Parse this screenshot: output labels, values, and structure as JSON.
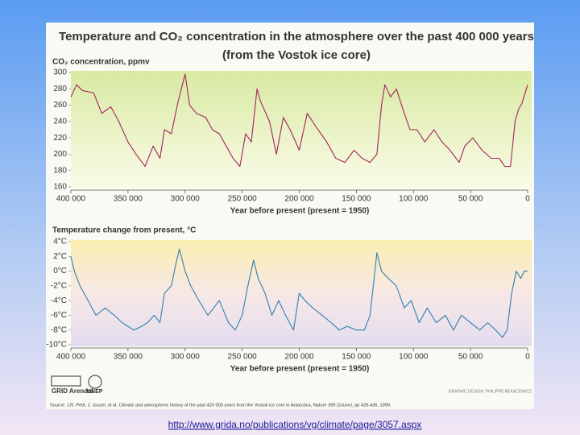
{
  "figure": {
    "title": "Temperature and CO₂ concentration in the atmosphere over the past 400 000 years",
    "subtitle": "(from the Vostok ice core)",
    "source": "Source: J.R. Petit, J. Jouzel, et al. Climate and atmospheric history of the past 420 000 years from the Vostok ice core in Antarctica, Nature 399 (3June), pp 429-436, 1999.",
    "credit": "GRAPHIC DESIGN: PHILIPPE REKACEWICZ",
    "logo_left": "GRID Arendal",
    "logo_right": "UNEP",
    "url": "http://www.grida.no/publications/vg/climate/page/3057.aspx"
  },
  "chart_data": [
    {
      "type": "line",
      "ylabel": "CO₂ concentration, ppmv",
      "xlabel": "Year before present (present = 1950)",
      "color": "#a3245f",
      "grid": false,
      "xlim": [
        400000,
        0
      ],
      "ylim": [
        160,
        300
      ],
      "xticks": [
        {
          "value": 400000,
          "label": "400 000"
        },
        {
          "value": 350000,
          "label": "350 000"
        },
        {
          "value": 300000,
          "label": "300 000"
        },
        {
          "value": 250000,
          "label": "250 000"
        },
        {
          "value": 200000,
          "label": "200 000"
        },
        {
          "value": 150000,
          "label": "150 000"
        },
        {
          "value": 100000,
          "label": "100 000"
        },
        {
          "value": 50000,
          "label": "50 000"
        },
        0
      ],
      "yticks": [
        160,
        180,
        200,
        220,
        240,
        260,
        280,
        300
      ],
      "x": [
        400000,
        395000,
        390000,
        380000,
        373000,
        365000,
        358000,
        350000,
        343000,
        335000,
        328000,
        322000,
        318000,
        312000,
        306000,
        300000,
        296000,
        290000,
        282000,
        276000,
        270000,
        264000,
        258000,
        252000,
        247000,
        242000,
        237000,
        234000,
        226000,
        220000,
        214000,
        208000,
        200000,
        193000,
        186000,
        176000,
        168000,
        160000,
        152000,
        145000,
        138000,
        132000,
        128000,
        125000,
        120000,
        115000,
        108000,
        103000,
        97000,
        90000,
        82000,
        75000,
        68000,
        60000,
        55000,
        48000,
        40000,
        32000,
        25000,
        20000,
        15000,
        11000,
        8000,
        5000,
        0
      ],
      "values": [
        270,
        285,
        278,
        275,
        250,
        258,
        240,
        215,
        200,
        185,
        210,
        195,
        230,
        225,
        265,
        298,
        260,
        250,
        245,
        230,
        225,
        210,
        195,
        185,
        225,
        215,
        280,
        265,
        240,
        200,
        245,
        230,
        205,
        250,
        235,
        215,
        195,
        190,
        205,
        195,
        190,
        200,
        260,
        285,
        270,
        280,
        250,
        230,
        230,
        215,
        230,
        215,
        205,
        190,
        210,
        220,
        205,
        195,
        195,
        185,
        185,
        240,
        255,
        262,
        285
      ]
    },
    {
      "type": "line",
      "ylabel": "Temperature change from present, °C",
      "xlabel": "Year before present (present = 1950)",
      "color": "#2f7fb0",
      "grid": false,
      "xlim": [
        400000,
        0
      ],
      "ylim": [
        -10,
        4
      ],
      "xticks": [
        {
          "value": 400000,
          "label": "400 000"
        },
        {
          "value": 350000,
          "label": "350 000"
        },
        {
          "value": 300000,
          "label": "300 000"
        },
        {
          "value": 250000,
          "label": "250 000"
        },
        {
          "value": 200000,
          "label": "200 000"
        },
        {
          "value": 150000,
          "label": "150 000"
        },
        {
          "value": 100000,
          "label": "100 000"
        },
        {
          "value": 50000,
          "label": "50 000"
        },
        0
      ],
      "yticks": [
        {
          "value": 4,
          "label": "4°C"
        },
        {
          "value": 2,
          "label": "2°C"
        },
        {
          "value": 0,
          "label": "0°C"
        },
        {
          "value": -2,
          "label": "-2°C"
        },
        {
          "value": -4,
          "label": "-4°C"
        },
        {
          "value": -6,
          "label": "-6°C"
        },
        {
          "value": -8,
          "label": "-8°C"
        },
        {
          "value": -10,
          "label": "-10°C"
        }
      ],
      "x": [
        400000,
        397000,
        392000,
        385000,
        378000,
        370000,
        362000,
        355000,
        345000,
        338000,
        333000,
        327000,
        322000,
        318000,
        312000,
        308000,
        305000,
        300000,
        295000,
        288000,
        280000,
        270000,
        262000,
        256000,
        250000,
        245000,
        240000,
        236000,
        230000,
        224000,
        218000,
        212000,
        205000,
        200000,
        195000,
        188000,
        180000,
        172000,
        165000,
        158000,
        150000,
        143000,
        138000,
        132000,
        128000,
        122000,
        115000,
        108000,
        102000,
        95000,
        88000,
        80000,
        72000,
        65000,
        58000,
        50000,
        42000,
        35000,
        28000,
        22000,
        18000,
        14000,
        10000,
        6000,
        3000,
        0
      ],
      "values": [
        2,
        0,
        -2,
        -4,
        -6,
        -5,
        -6,
        -7,
        -8,
        -7.5,
        -7,
        -6,
        -7,
        -3,
        -2,
        1,
        3,
        0,
        -2,
        -4,
        -6,
        -4,
        -7,
        -8,
        -6,
        -2,
        1.5,
        -1,
        -3,
        -6,
        -4,
        -6,
        -8,
        -3,
        -4,
        -5,
        -6,
        -7,
        -8,
        -7.5,
        -8,
        -8,
        -6,
        2.5,
        0,
        -1,
        -2,
        -5,
        -4,
        -7,
        -5,
        -7,
        -6,
        -8,
        -6,
        -7,
        -8,
        -7,
        -8,
        -9,
        -8,
        -3,
        0,
        -1,
        0,
        0
      ]
    }
  ]
}
